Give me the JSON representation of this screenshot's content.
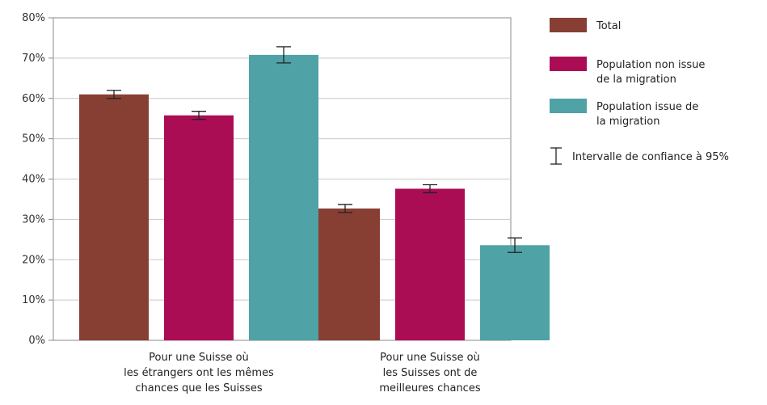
{
  "chart_data": {
    "type": "bar",
    "categories": [
      [
        "Pour une Suisse où",
        "les étrangers ont les mêmes",
        "chances que les Suisses"
      ],
      [
        "Pour une Suisse où",
        "les Suisses ont de",
        "meilleures chances"
      ]
    ],
    "series": [
      {
        "name": "Total",
        "color": "#873f34",
        "values": [
          61,
          32.7
        ],
        "ci_low": [
          60,
          31.7
        ],
        "ci_high": [
          62,
          33.7
        ]
      },
      {
        "name": "Population non issue de la migration",
        "legend_lines": [
          "Population non issue",
          "de la migration"
        ],
        "color": "#ab0d55",
        "values": [
          55.8,
          37.6
        ],
        "ci_low": [
          54.8,
          36.6
        ],
        "ci_high": [
          56.8,
          38.6
        ]
      },
      {
        "name": "Population issue de la migration",
        "legend_lines": [
          "Population issue de",
          "la migration"
        ],
        "color": "#4fa2a6",
        "values": [
          70.8,
          23.6
        ],
        "ci_low": [
          68.8,
          21.8
        ],
        "ci_high": [
          72.8,
          25.4
        ]
      }
    ],
    "ylim": [
      0,
      80
    ],
    "yticks": [
      0,
      10,
      20,
      30,
      40,
      50,
      60,
      70,
      80
    ],
    "ytick_labels": [
      "0%",
      "10%",
      "20%",
      "30%",
      "40%",
      "50%",
      "60%",
      "70%",
      "80%"
    ],
    "grid": true,
    "error_bars": true,
    "ci_legend_label": "Intervalle de confiance à 95%",
    "legend_position": "right",
    "gridline_color": "#c8c8c8",
    "axis_color": "#888888"
  }
}
